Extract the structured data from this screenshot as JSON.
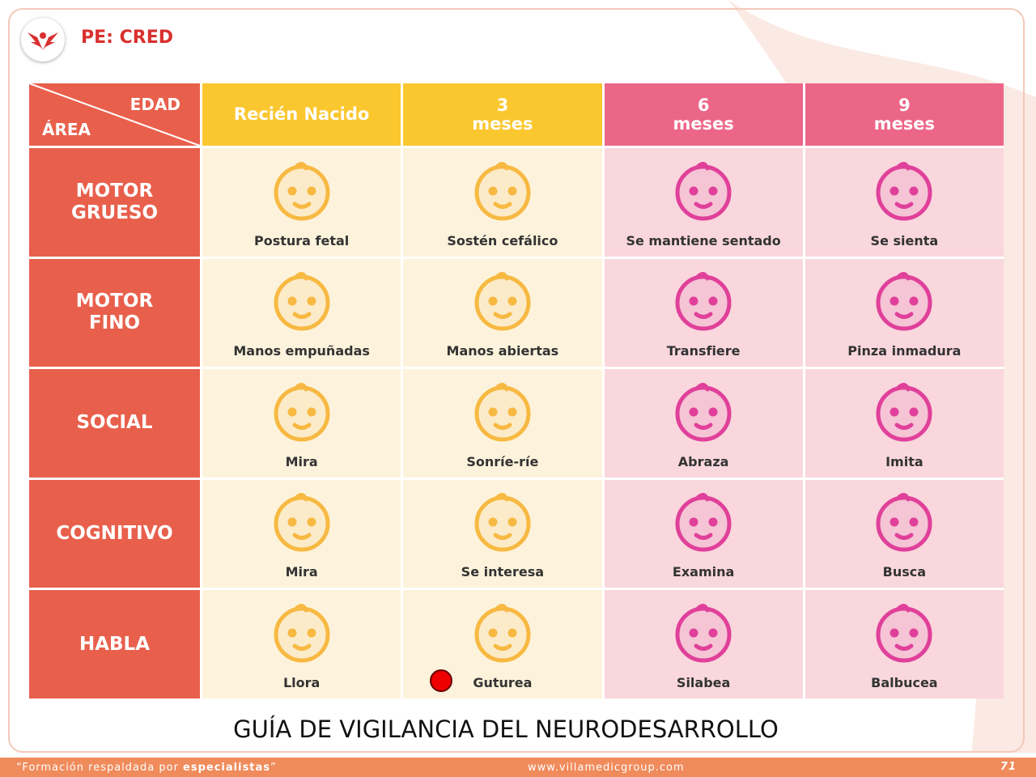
{
  "header": {
    "title": "PE: CRED"
  },
  "table": {
    "corner": {
      "top": "EDAD",
      "bottom": "ÁREA"
    },
    "columns": [
      [
        "Recién Nacido"
      ],
      [
        "3",
        "meses"
      ],
      [
        "6",
        "meses"
      ],
      [
        "9",
        "meses"
      ]
    ],
    "rows": [
      {
        "area": [
          "MOTOR",
          "GRUESO"
        ],
        "cells": [
          "Postura fetal",
          "Sostén cefálico",
          "Se mantiene sentado",
          "Se sienta"
        ]
      },
      {
        "area": [
          "MOTOR",
          "FINO"
        ],
        "cells": [
          "Manos empuñadas",
          "Manos abiertas",
          "Transfiere",
          "Pinza inmadura"
        ]
      },
      {
        "area": [
          "SOCIAL"
        ],
        "cells": [
          "Mira",
          "Sonríe-ríe",
          "Abraza",
          "Imita"
        ]
      },
      {
        "area": [
          "COGNITIVO"
        ],
        "cells": [
          "Mira",
          "Se interesa",
          "Examina",
          "Busca"
        ]
      },
      {
        "area": [
          "HABLA"
        ],
        "cells": [
          "Llora",
          "Guturea",
          "Silabea",
          "Balbucea"
        ]
      }
    ]
  },
  "caption": "GUÍA DE VIGILANCIA DEL NEURODESARROLLO",
  "footer": {
    "tagline": [
      "“Formación respaldada por ",
      "especialistas",
      "”"
    ],
    "website": "www.villamedicgroup.com",
    "page": "71"
  }
}
